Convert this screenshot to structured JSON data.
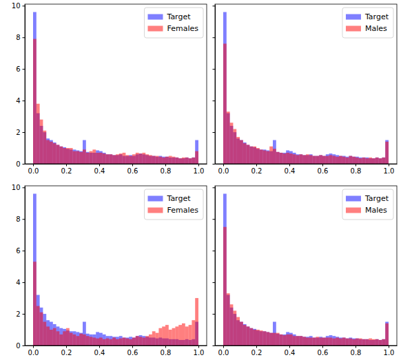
{
  "chart_data": [
    {
      "type": "histogram",
      "legend": "upper right",
      "bins": [
        0,
        0.02,
        0.04,
        0.06,
        0.08,
        0.1,
        0.12,
        0.14,
        0.16,
        0.18,
        0.2,
        0.22,
        0.24,
        0.26,
        0.28,
        0.3,
        0.32,
        0.34,
        0.36,
        0.38,
        0.4,
        0.42,
        0.44,
        0.46,
        0.48,
        0.5,
        0.52,
        0.54,
        0.56,
        0.58,
        0.6,
        0.62,
        0.64,
        0.66,
        0.68,
        0.7,
        0.72,
        0.74,
        0.76,
        0.78,
        0.8,
        0.82,
        0.84,
        0.86,
        0.88,
        0.9,
        0.92,
        0.94,
        0.96,
        0.98,
        1
      ],
      "xlim": [
        -0.05,
        1.05
      ],
      "ylim": [
        0,
        10.1
      ],
      "xticks": [
        {
          "value": 0,
          "label": "0.0"
        },
        0.2,
        0.4,
        0.6,
        0.8,
        {
          "value": 1,
          "label": "1.0"
        }
      ],
      "yticks": [
        0,
        2,
        4,
        6,
        8,
        10
      ],
      "series": [
        {
          "name": "Target",
          "color": "#0000ff",
          "values": [
            9.6,
            3.2,
            2.4,
            2.0,
            1.6,
            1.5,
            1.35,
            1.2,
            1.1,
            1.05,
            0.95,
            0.9,
            0.9,
            0.85,
            0.8,
            1.5,
            0.75,
            0.7,
            0.7,
            0.85,
            0.8,
            0.7,
            0.6,
            0.6,
            0.55,
            0.55,
            0.6,
            0.5,
            0.5,
            0.55,
            0.5,
            0.6,
            0.65,
            0.6,
            0.55,
            0.5,
            0.5,
            0.45,
            0.5,
            0.45,
            0.45,
            0.4,
            0.4,
            0.4,
            0.35,
            0.35,
            0.4,
            0.35,
            0.4,
            1.5
          ]
        },
        {
          "name": "Females",
          "color": "#ff0000",
          "values": [
            7.9,
            3.8,
            2.8,
            2.1,
            1.5,
            1.4,
            1.3,
            1.2,
            1.1,
            1.0,
            1.0,
            1.0,
            0.8,
            0.8,
            0.75,
            0.9,
            0.7,
            0.8,
            0.9,
            0.7,
            0.7,
            0.65,
            0.6,
            0.6,
            0.55,
            0.6,
            0.65,
            0.7,
            0.55,
            0.5,
            0.6,
            0.7,
            0.65,
            0.7,
            0.6,
            0.55,
            0.5,
            0.5,
            0.45,
            0.4,
            0.45,
            0.5,
            0.45,
            0.4,
            0.35,
            0.4,
            0.4,
            0.35,
            0.4,
            0.8
          ]
        }
      ]
    },
    {
      "type": "histogram",
      "legend": "upper right",
      "tick_labels": "x",
      "bins": [
        0,
        0.02,
        0.04,
        0.06,
        0.08,
        0.1,
        0.12,
        0.14,
        0.16,
        0.18,
        0.2,
        0.22,
        0.24,
        0.26,
        0.28,
        0.3,
        0.32,
        0.34,
        0.36,
        0.38,
        0.4,
        0.42,
        0.44,
        0.46,
        0.48,
        0.5,
        0.52,
        0.54,
        0.56,
        0.58,
        0.6,
        0.62,
        0.64,
        0.66,
        0.68,
        0.7,
        0.72,
        0.74,
        0.76,
        0.78,
        0.8,
        0.82,
        0.84,
        0.86,
        0.88,
        0.9,
        0.92,
        0.94,
        0.96,
        0.98,
        1
      ],
      "xlim": [
        -0.05,
        1.05
      ],
      "ylim": [
        0,
        10.1
      ],
      "xticks": [
        {
          "value": 0,
          "label": "0.0"
        },
        0.2,
        0.4,
        0.6,
        0.8,
        {
          "value": 1,
          "label": "1.0"
        }
      ],
      "yticks": [
        0,
        2,
        4,
        6,
        8,
        10
      ],
      "series": [
        {
          "name": "Target",
          "color": "#0000ff",
          "values": [
            9.6,
            3.2,
            2.4,
            2.0,
            1.6,
            1.5,
            1.35,
            1.2,
            1.1,
            1.05,
            0.95,
            0.9,
            0.9,
            0.85,
            0.8,
            1.5,
            0.75,
            0.7,
            0.7,
            0.85,
            0.8,
            0.7,
            0.6,
            0.6,
            0.55,
            0.55,
            0.6,
            0.5,
            0.5,
            0.55,
            0.5,
            0.6,
            0.65,
            0.6,
            0.55,
            0.5,
            0.5,
            0.45,
            0.5,
            0.45,
            0.45,
            0.4,
            0.4,
            0.4,
            0.35,
            0.35,
            0.4,
            0.35,
            0.4,
            1.5
          ]
        },
        {
          "name": "Males",
          "color": "#ff0000",
          "values": [
            7.6,
            3.3,
            2.6,
            2.2,
            1.7,
            1.5,
            1.3,
            1.2,
            1.1,
            1.1,
            1.0,
            0.9,
            0.85,
            0.8,
            1.1,
            0.95,
            0.75,
            0.7,
            0.65,
            0.7,
            0.65,
            0.6,
            0.55,
            0.6,
            0.55,
            0.6,
            0.55,
            0.5,
            0.5,
            0.55,
            0.5,
            0.5,
            0.55,
            0.5,
            0.45,
            0.5,
            0.45,
            0.4,
            0.5,
            0.45,
            0.4,
            0.35,
            0.4,
            0.35,
            0.4,
            0.35,
            0.4,
            0.35,
            0.4,
            1.4
          ]
        }
      ]
    },
    {
      "type": "histogram",
      "legend": "upper right",
      "bins": [
        0,
        0.02,
        0.04,
        0.06,
        0.08,
        0.1,
        0.12,
        0.14,
        0.16,
        0.18,
        0.2,
        0.22,
        0.24,
        0.26,
        0.28,
        0.3,
        0.32,
        0.34,
        0.36,
        0.38,
        0.4,
        0.42,
        0.44,
        0.46,
        0.48,
        0.5,
        0.52,
        0.54,
        0.56,
        0.58,
        0.6,
        0.62,
        0.64,
        0.66,
        0.68,
        0.7,
        0.72,
        0.74,
        0.76,
        0.78,
        0.8,
        0.82,
        0.84,
        0.86,
        0.88,
        0.9,
        0.92,
        0.94,
        0.96,
        0.98,
        1
      ],
      "xlim": [
        -0.05,
        1.05
      ],
      "ylim": [
        0,
        10.1
      ],
      "xticks": [
        {
          "value": 0,
          "label": "0.0"
        },
        0.2,
        0.4,
        0.6,
        0.8,
        {
          "value": 1,
          "label": "1.0"
        }
      ],
      "yticks": [
        0,
        2,
        4,
        6,
        8,
        10
      ],
      "series": [
        {
          "name": "Target",
          "color": "#0000ff",
          "values": [
            9.6,
            3.2,
            2.4,
            2.0,
            1.6,
            1.5,
            1.35,
            1.2,
            1.1,
            1.05,
            0.95,
            0.9,
            0.9,
            0.85,
            0.8,
            1.5,
            0.75,
            0.7,
            0.7,
            0.85,
            0.8,
            0.7,
            0.6,
            0.6,
            0.55,
            0.55,
            0.6,
            0.5,
            0.5,
            0.55,
            0.5,
            0.6,
            0.65,
            0.6,
            0.55,
            0.5,
            0.5,
            0.45,
            0.5,
            0.45,
            0.45,
            0.4,
            0.4,
            0.4,
            0.35,
            0.35,
            0.4,
            0.35,
            0.4,
            1.5
          ]
        },
        {
          "name": "Females",
          "color": "#ff0000",
          "values": [
            5.3,
            2.5,
            2.1,
            1.5,
            1.2,
            1.0,
            1.1,
            0.9,
            0.7,
            0.9,
            1.1,
            0.8,
            0.7,
            0.6,
            0.75,
            0.7,
            0.6,
            0.55,
            0.5,
            0.45,
            0.5,
            0.4,
            0.45,
            0.4,
            0.5,
            0.4,
            0.45,
            0.5,
            0.45,
            0.4,
            0.5,
            0.6,
            0.55,
            0.5,
            0.6,
            0.7,
            0.9,
            0.8,
            1.1,
            1.2,
            1.3,
            1.0,
            1.1,
            1.2,
            1.3,
            1.4,
            1.2,
            1.3,
            1.6,
            3.0
          ]
        }
      ]
    },
    {
      "type": "histogram",
      "legend": "upper right",
      "tick_labels": "x",
      "bins": [
        0,
        0.02,
        0.04,
        0.06,
        0.08,
        0.1,
        0.12,
        0.14,
        0.16,
        0.18,
        0.2,
        0.22,
        0.24,
        0.26,
        0.28,
        0.3,
        0.32,
        0.34,
        0.36,
        0.38,
        0.4,
        0.42,
        0.44,
        0.46,
        0.48,
        0.5,
        0.52,
        0.54,
        0.56,
        0.58,
        0.6,
        0.62,
        0.64,
        0.66,
        0.68,
        0.7,
        0.72,
        0.74,
        0.76,
        0.78,
        0.8,
        0.82,
        0.84,
        0.86,
        0.88,
        0.9,
        0.92,
        0.94,
        0.96,
        0.98,
        1
      ],
      "xlim": [
        -0.05,
        1.05
      ],
      "ylim": [
        0,
        10.1
      ],
      "xticks": [
        {
          "value": 0,
          "label": "0.0"
        },
        0.2,
        0.4,
        0.6,
        0.8,
        {
          "value": 1,
          "label": "1.0"
        }
      ],
      "yticks": [
        0,
        2,
        4,
        6,
        8,
        10
      ],
      "series": [
        {
          "name": "Target",
          "color": "#0000ff",
          "values": [
            9.6,
            3.2,
            2.4,
            2.0,
            1.6,
            1.5,
            1.35,
            1.2,
            1.1,
            1.05,
            0.95,
            0.9,
            0.9,
            0.85,
            0.8,
            1.5,
            0.75,
            0.7,
            0.7,
            0.85,
            0.8,
            0.7,
            0.6,
            0.6,
            0.55,
            0.55,
            0.6,
            0.5,
            0.5,
            0.55,
            0.5,
            0.6,
            0.65,
            0.6,
            0.55,
            0.5,
            0.5,
            0.45,
            0.5,
            0.45,
            0.45,
            0.4,
            0.4,
            0.4,
            0.35,
            0.35,
            0.4,
            0.35,
            0.4,
            1.5
          ]
        },
        {
          "name": "Males",
          "color": "#ff0000",
          "values": [
            7.5,
            3.3,
            2.6,
            2.2,
            1.8,
            1.5,
            1.3,
            1.2,
            1.1,
            1.0,
            1.0,
            0.95,
            0.9,
            0.85,
            0.8,
            0.8,
            0.8,
            0.7,
            0.65,
            0.7,
            0.7,
            0.6,
            0.6,
            0.6,
            0.55,
            0.5,
            0.5,
            0.5,
            0.55,
            0.5,
            0.5,
            0.5,
            0.5,
            0.45,
            0.5,
            0.45,
            0.5,
            0.45,
            0.45,
            0.4,
            0.45,
            0.45,
            0.4,
            0.4,
            0.45,
            0.4,
            0.4,
            0.35,
            0.4,
            1.4
          ]
        }
      ]
    }
  ]
}
